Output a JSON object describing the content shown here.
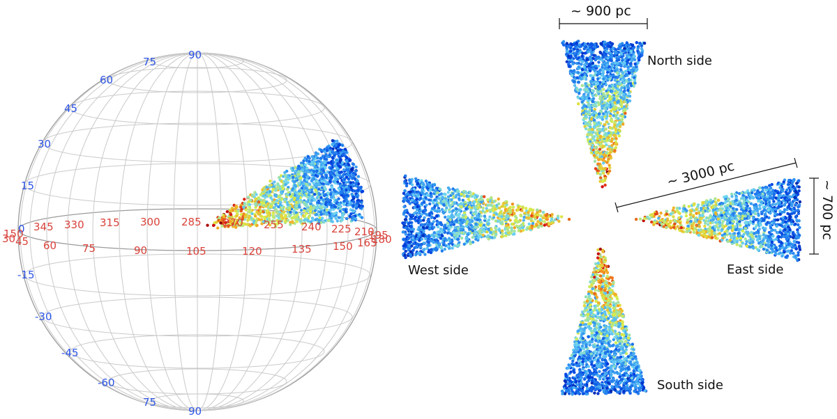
{
  "sphere": {
    "latitude_labels": [
      "90",
      "75",
      "60",
      "45",
      "30",
      "15",
      "0",
      "-15",
      "-30",
      "-45",
      "-60",
      "75",
      "90"
    ],
    "upper_longitude_labels": [
      "150",
      "345",
      "330",
      "315",
      "300",
      "285",
      "270",
      "255",
      "240",
      "225",
      "210",
      "195"
    ],
    "lower_longitude_labels": [
      "30",
      "45",
      "60",
      "75",
      "90",
      "105",
      "120",
      "135",
      "150",
      "165",
      "180"
    ],
    "colors": {
      "latitude": "#2d55e6",
      "longitude": "#d9423a",
      "grid": "#c9c9c9"
    }
  },
  "views": {
    "north": {
      "label": "North side"
    },
    "south": {
      "label": "South side"
    },
    "east": {
      "label": "East side"
    },
    "west": {
      "label": "West side"
    }
  },
  "scales": {
    "width": "~ 900 pc",
    "length": "~ 3000 pc",
    "height": "~ 700 pc"
  },
  "colormap": [
    "#00107a",
    "#0040e0",
    "#2b8cf0",
    "#6fd6f2",
    "#d8ee4a",
    "#f6a020",
    "#d41010",
    "#7a0000"
  ]
}
